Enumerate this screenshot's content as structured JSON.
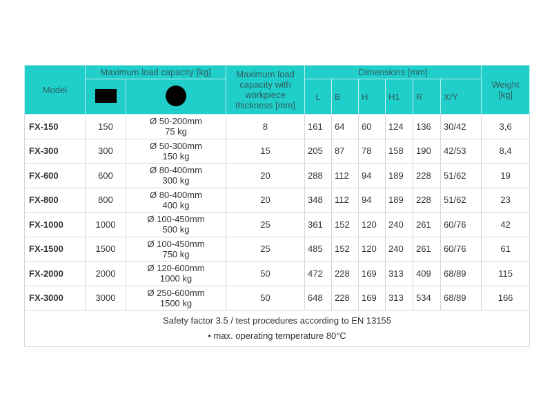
{
  "headers": {
    "model": "Model",
    "max_load": "Maximum load capacity [kg]",
    "max_load_thickness": "Maximum load capacity with workpiece thickness [mm]",
    "dimensions": "Dimensions [mm]",
    "weight": "Weight [kg]",
    "dim_cols": [
      "L",
      "B",
      "H",
      "H1",
      "R",
      "X/Y"
    ],
    "icons": [
      "rectangle-icon",
      "circle-icon"
    ]
  },
  "rows": [
    {
      "model": "FX-150",
      "rect": "150",
      "round": "Ø 50-200mm",
      "round_kg": "75 kg",
      "thickness": "8",
      "dims": [
        "161",
        "64",
        "60",
        "124",
        "136",
        "30/42"
      ],
      "weight": "3,6"
    },
    {
      "model": "FX-300",
      "rect": "300",
      "round": "Ø 50-300mm",
      "round_kg": "150 kg",
      "thickness": "15",
      "dims": [
        "205",
        "87",
        "78",
        "158",
        "190",
        "42/53"
      ],
      "weight": "8,4"
    },
    {
      "model": "FX-600",
      "rect": "600",
      "round": "Ø 80-400mm",
      "round_kg": "300 kg",
      "thickness": "20",
      "dims": [
        "288",
        "112",
        "94",
        "189",
        "228",
        "51/62"
      ],
      "weight": "19"
    },
    {
      "model": "FX-800",
      "rect": "800",
      "round": "Ø 80-400mm",
      "round_kg": "400 kg",
      "thickness": "20",
      "dims": [
        "348",
        "112",
        "94",
        "189",
        "228",
        "51/62"
      ],
      "weight": "23"
    },
    {
      "model": "FX-1000",
      "rect": "1000",
      "round": "Ø 100-450mm",
      "round_kg": "500 kg",
      "thickness": "25",
      "dims": [
        "361",
        "152",
        "120",
        "240",
        "261",
        "60/76"
      ],
      "weight": "42"
    },
    {
      "model": "FX-1500",
      "rect": "1500",
      "round": "Ø 100-450mm",
      "round_kg": "750 kg",
      "thickness": "25",
      "dims": [
        "485",
        "152",
        "120",
        "240",
        "261",
        "60/76"
      ],
      "weight": "61"
    },
    {
      "model": "FX-2000",
      "rect": "2000",
      "round": "Ø 120-600mm",
      "round_kg": "1000 kg",
      "thickness": "50",
      "dims": [
        "472",
        "228",
        "169",
        "313",
        "409",
        "68/89"
      ],
      "weight": "115"
    },
    {
      "model": "FX-3000",
      "rect": "3000",
      "round": "Ø 250-600mm",
      "round_kg": "1500 kg",
      "thickness": "50",
      "dims": [
        "648",
        "228",
        "169",
        "313",
        "534",
        "68/89"
      ],
      "weight": "166"
    }
  ],
  "footer": {
    "line1": "Safety factor 3.5 / test procedures according to EN 13155",
    "line2": "• max. operating temperature 80°C"
  },
  "colors": {
    "header_bg": "#20ceca",
    "header_text": "#2f5e60"
  }
}
